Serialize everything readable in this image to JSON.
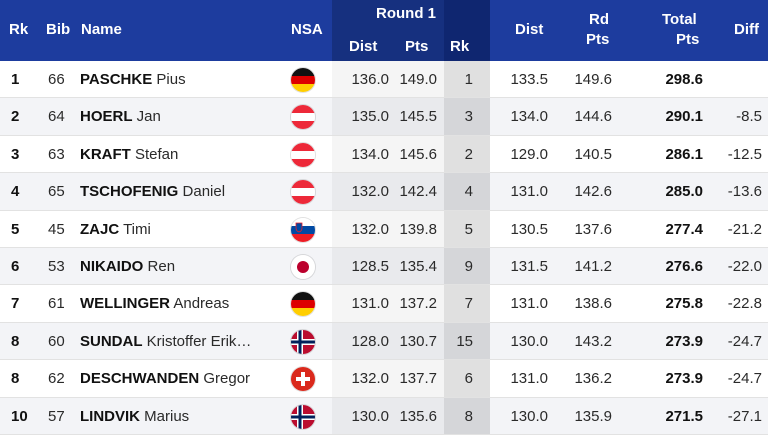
{
  "header": {
    "rk": "Rk",
    "bib": "Bib",
    "name": "Name",
    "nsa": "NSA",
    "round1": "Round 1",
    "r1_dist": "Dist",
    "r1_pts": "Pts",
    "r1_rk": "Rk",
    "dist": "Dist",
    "rd_pts_line1": "Rd",
    "rd_pts_line2": "Pts",
    "total_line1": "Total",
    "total_line2": "Pts",
    "diff": "Diff"
  },
  "rows": [
    {
      "rk": "1",
      "bib": "66",
      "last": "PASCHKE",
      "first": "Pius",
      "flag": "germany-flag-icon",
      "r1_dist": "136.0",
      "r1_pts": "149.0",
      "r1_rk": "1",
      "dist": "133.5",
      "rd_pts": "149.6",
      "total": "298.6",
      "diff": ""
    },
    {
      "rk": "2",
      "bib": "64",
      "last": "HOERL",
      "first": "Jan",
      "flag": "austria-flag-icon",
      "r1_dist": "135.0",
      "r1_pts": "145.5",
      "r1_rk": "3",
      "dist": "134.0",
      "rd_pts": "144.6",
      "total": "290.1",
      "diff": "-8.5"
    },
    {
      "rk": "3",
      "bib": "63",
      "last": "KRAFT",
      "first": "Stefan",
      "flag": "austria-flag-icon",
      "r1_dist": "134.0",
      "r1_pts": "145.6",
      "r1_rk": "2",
      "dist": "129.0",
      "rd_pts": "140.5",
      "total": "286.1",
      "diff": "-12.5"
    },
    {
      "rk": "4",
      "bib": "65",
      "last": "TSCHOFENIG",
      "first": "Daniel",
      "flag": "austria-flag-icon",
      "r1_dist": "132.0",
      "r1_pts": "142.4",
      "r1_rk": "4",
      "dist": "131.0",
      "rd_pts": "142.6",
      "total": "285.0",
      "diff": "-13.6"
    },
    {
      "rk": "5",
      "bib": "45",
      "last": "ZAJC",
      "first": "Timi",
      "flag": "slovenia-flag-icon",
      "r1_dist": "132.0",
      "r1_pts": "139.8",
      "r1_rk": "5",
      "dist": "130.5",
      "rd_pts": "137.6",
      "total": "277.4",
      "diff": "-21.2"
    },
    {
      "rk": "6",
      "bib": "53",
      "last": "NIKAIDO",
      "first": "Ren",
      "flag": "japan-flag-icon",
      "r1_dist": "128.5",
      "r1_pts": "135.4",
      "r1_rk": "9",
      "dist": "131.5",
      "rd_pts": "141.2",
      "total": "276.6",
      "diff": "-22.0"
    },
    {
      "rk": "7",
      "bib": "61",
      "last": "WELLINGER",
      "first": "Andreas",
      "flag": "germany-flag-icon",
      "r1_dist": "131.0",
      "r1_pts": "137.2",
      "r1_rk": "7",
      "dist": "131.0",
      "rd_pts": "138.6",
      "total": "275.8",
      "diff": "-22.8"
    },
    {
      "rk": "8",
      "bib": "60",
      "last": "SUNDAL",
      "first": "Kristoffer Erik…",
      "flag": "norway-flag-icon",
      "r1_dist": "128.0",
      "r1_pts": "130.7",
      "r1_rk": "15",
      "dist": "130.0",
      "rd_pts": "143.2",
      "total": "273.9",
      "diff": "-24.7"
    },
    {
      "rk": "8",
      "bib": "62",
      "last": "DESCHWANDEN",
      "first": "Gregor",
      "flag": "switzerland-flag-icon",
      "r1_dist": "132.0",
      "r1_pts": "137.7",
      "r1_rk": "6",
      "dist": "131.0",
      "rd_pts": "136.2",
      "total": "273.9",
      "diff": "-24.7"
    },
    {
      "rk": "10",
      "bib": "57",
      "last": "LINDVIK",
      "first": "Marius",
      "flag": "norway-flag-icon",
      "r1_dist": "130.0",
      "r1_pts": "135.6",
      "r1_rk": "8",
      "dist": "130.0",
      "rd_pts": "135.9",
      "total": "271.5",
      "diff": "-27.1"
    }
  ],
  "colors": {
    "header": "#1d3c9e",
    "round1": "#16307f",
    "round1_rk": "#0f2670"
  }
}
